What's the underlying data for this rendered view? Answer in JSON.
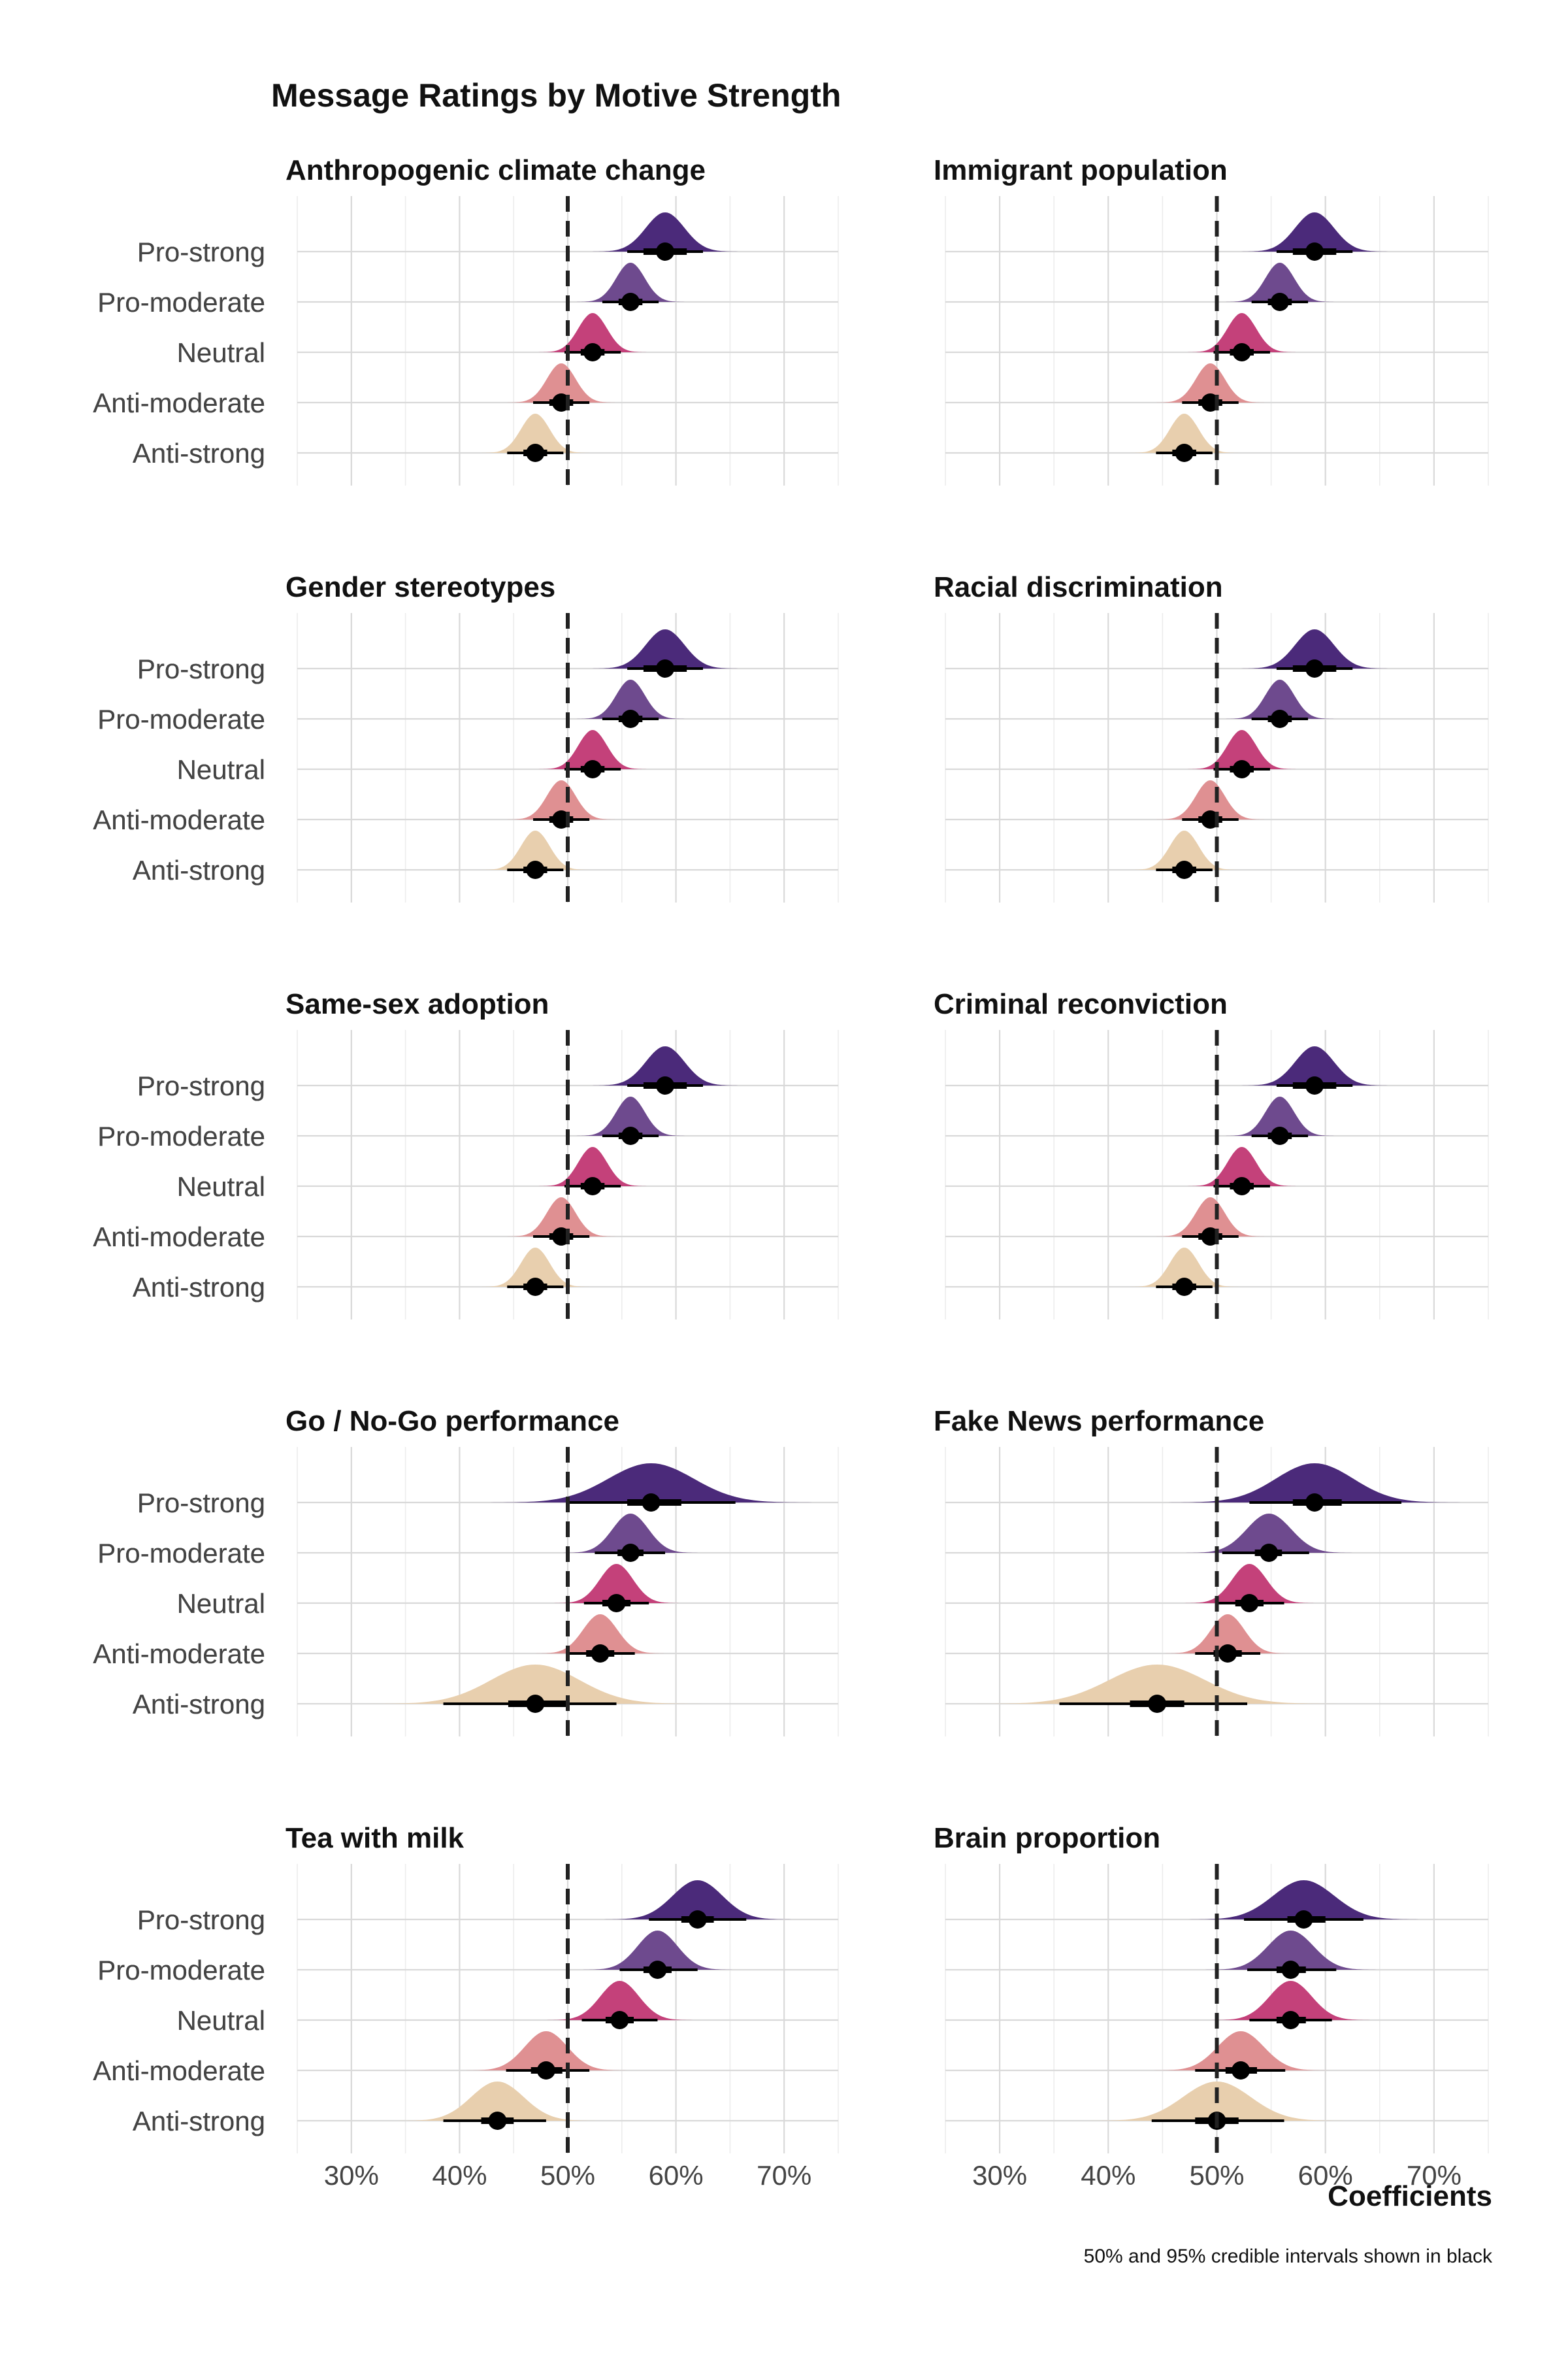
{
  "title": "Message Ratings by Motive Strength",
  "xlabel": "Coefficients",
  "caption": "50% and 95% credible intervals shown in black",
  "colors": {
    "Pro-strong": "#4b2a7a",
    "Pro-moderate": "#6e4a8e",
    "Neutral": "#c4417a",
    "Anti-moderate": "#df9092",
    "Anti-strong": "#e8cfae",
    "interval": "#000000",
    "reference": "#222222"
  },
  "chart_data": {
    "type": "scatter",
    "subtype": "half-eye (density + point + 50%/95% interval)",
    "x_axis": {
      "xlim": [
        0.25,
        0.75
      ],
      "ticks": [
        0.3,
        0.4,
        0.5,
        0.6,
        0.7
      ],
      "tick_labels": [
        "30%",
        "40%",
        "50%",
        "60%",
        "70%"
      ],
      "reference_line": 0.5
    },
    "categories": [
      "Pro-strong",
      "Pro-moderate",
      "Neutral",
      "Anti-moderate",
      "Anti-strong"
    ],
    "grid": true,
    "panels": [
      {
        "title": "Anthropogenic climate change",
        "points": [
          {
            "category": "Pro-strong",
            "mean": 0.59,
            "ci50": [
              0.57,
              0.61
            ],
            "ci95": [
              0.555,
              0.625
            ]
          },
          {
            "category": "Pro-moderate",
            "mean": 0.558,
            "ci50": [
              0.547,
              0.569
            ],
            "ci95": [
              0.532,
              0.584
            ]
          },
          {
            "category": "Neutral",
            "mean": 0.523,
            "ci50": [
              0.512,
              0.534
            ],
            "ci95": [
              0.497,
              0.549
            ]
          },
          {
            "category": "Anti-moderate",
            "mean": 0.494,
            "ci50": [
              0.483,
              0.505
            ],
            "ci95": [
              0.468,
              0.52
            ]
          },
          {
            "category": "Anti-strong",
            "mean": 0.47,
            "ci50": [
              0.459,
              0.481
            ],
            "ci95": [
              0.444,
              0.496
            ]
          }
        ]
      },
      {
        "title": "Immigrant population",
        "points": [
          {
            "category": "Pro-strong",
            "mean": 0.59,
            "ci50": [
              0.57,
              0.61
            ],
            "ci95": [
              0.555,
              0.625
            ]
          },
          {
            "category": "Pro-moderate",
            "mean": 0.558,
            "ci50": [
              0.547,
              0.569
            ],
            "ci95": [
              0.532,
              0.584
            ]
          },
          {
            "category": "Neutral",
            "mean": 0.523,
            "ci50": [
              0.512,
              0.534
            ],
            "ci95": [
              0.497,
              0.549
            ]
          },
          {
            "category": "Anti-moderate",
            "mean": 0.494,
            "ci50": [
              0.483,
              0.505
            ],
            "ci95": [
              0.468,
              0.52
            ]
          },
          {
            "category": "Anti-strong",
            "mean": 0.47,
            "ci50": [
              0.459,
              0.481
            ],
            "ci95": [
              0.444,
              0.496
            ]
          }
        ]
      },
      {
        "title": "Gender stereotypes",
        "points": [
          {
            "category": "Pro-strong",
            "mean": 0.59,
            "ci50": [
              0.57,
              0.61
            ],
            "ci95": [
              0.555,
              0.625
            ]
          },
          {
            "category": "Pro-moderate",
            "mean": 0.558,
            "ci50": [
              0.547,
              0.569
            ],
            "ci95": [
              0.532,
              0.584
            ]
          },
          {
            "category": "Neutral",
            "mean": 0.523,
            "ci50": [
              0.512,
              0.534
            ],
            "ci95": [
              0.497,
              0.549
            ]
          },
          {
            "category": "Anti-moderate",
            "mean": 0.494,
            "ci50": [
              0.483,
              0.505
            ],
            "ci95": [
              0.468,
              0.52
            ]
          },
          {
            "category": "Anti-strong",
            "mean": 0.47,
            "ci50": [
              0.459,
              0.481
            ],
            "ci95": [
              0.444,
              0.496
            ]
          }
        ]
      },
      {
        "title": "Racial discrimination",
        "points": [
          {
            "category": "Pro-strong",
            "mean": 0.59,
            "ci50": [
              0.57,
              0.61
            ],
            "ci95": [
              0.555,
              0.625
            ]
          },
          {
            "category": "Pro-moderate",
            "mean": 0.558,
            "ci50": [
              0.547,
              0.569
            ],
            "ci95": [
              0.532,
              0.584
            ]
          },
          {
            "category": "Neutral",
            "mean": 0.523,
            "ci50": [
              0.512,
              0.534
            ],
            "ci95": [
              0.497,
              0.549
            ]
          },
          {
            "category": "Anti-moderate",
            "mean": 0.494,
            "ci50": [
              0.483,
              0.505
            ],
            "ci95": [
              0.468,
              0.52
            ]
          },
          {
            "category": "Anti-strong",
            "mean": 0.47,
            "ci50": [
              0.459,
              0.481
            ],
            "ci95": [
              0.444,
              0.496
            ]
          }
        ]
      },
      {
        "title": "Same-sex adoption",
        "points": [
          {
            "category": "Pro-strong",
            "mean": 0.59,
            "ci50": [
              0.57,
              0.61
            ],
            "ci95": [
              0.555,
              0.625
            ]
          },
          {
            "category": "Pro-moderate",
            "mean": 0.558,
            "ci50": [
              0.547,
              0.569
            ],
            "ci95": [
              0.532,
              0.584
            ]
          },
          {
            "category": "Neutral",
            "mean": 0.523,
            "ci50": [
              0.512,
              0.534
            ],
            "ci95": [
              0.497,
              0.549
            ]
          },
          {
            "category": "Anti-moderate",
            "mean": 0.494,
            "ci50": [
              0.483,
              0.505
            ],
            "ci95": [
              0.468,
              0.52
            ]
          },
          {
            "category": "Anti-strong",
            "mean": 0.47,
            "ci50": [
              0.459,
              0.481
            ],
            "ci95": [
              0.444,
              0.496
            ]
          }
        ]
      },
      {
        "title": "Criminal reconviction",
        "points": [
          {
            "category": "Pro-strong",
            "mean": 0.59,
            "ci50": [
              0.57,
              0.61
            ],
            "ci95": [
              0.555,
              0.625
            ]
          },
          {
            "category": "Pro-moderate",
            "mean": 0.558,
            "ci50": [
              0.547,
              0.569
            ],
            "ci95": [
              0.532,
              0.584
            ]
          },
          {
            "category": "Neutral",
            "mean": 0.523,
            "ci50": [
              0.512,
              0.534
            ],
            "ci95": [
              0.497,
              0.549
            ]
          },
          {
            "category": "Anti-moderate",
            "mean": 0.494,
            "ci50": [
              0.483,
              0.505
            ],
            "ci95": [
              0.468,
              0.52
            ]
          },
          {
            "category": "Anti-strong",
            "mean": 0.47,
            "ci50": [
              0.459,
              0.481
            ],
            "ci95": [
              0.444,
              0.496
            ]
          }
        ]
      },
      {
        "title": "Go / No-Go performance",
        "points": [
          {
            "category": "Pro-strong",
            "mean": 0.577,
            "ci50": [
              0.555,
              0.605
            ],
            "ci95": [
              0.5,
              0.655
            ]
          },
          {
            "category": "Pro-moderate",
            "mean": 0.558,
            "ci50": [
              0.546,
              0.57
            ],
            "ci95": [
              0.525,
              0.59
            ]
          },
          {
            "category": "Neutral",
            "mean": 0.545,
            "ci50": [
              0.532,
              0.558
            ],
            "ci95": [
              0.515,
              0.575
            ]
          },
          {
            "category": "Anti-moderate",
            "mean": 0.53,
            "ci50": [
              0.517,
              0.543
            ],
            "ci95": [
              0.5,
              0.562
            ]
          },
          {
            "category": "Anti-strong",
            "mean": 0.47,
            "ci50": [
              0.445,
              0.5
            ],
            "ci95": [
              0.385,
              0.545
            ]
          }
        ]
      },
      {
        "title": "Fake News performance",
        "points": [
          {
            "category": "Pro-strong",
            "mean": 0.59,
            "ci50": [
              0.57,
              0.615
            ],
            "ci95": [
              0.53,
              0.67
            ]
          },
          {
            "category": "Pro-moderate",
            "mean": 0.548,
            "ci50": [
              0.535,
              0.56
            ],
            "ci95": [
              0.505,
              0.585
            ]
          },
          {
            "category": "Neutral",
            "mean": 0.53,
            "ci50": [
              0.517,
              0.543
            ],
            "ci95": [
              0.5,
              0.562
            ]
          },
          {
            "category": "Anti-moderate",
            "mean": 0.51,
            "ci50": [
              0.497,
              0.523
            ],
            "ci95": [
              0.48,
              0.54
            ]
          },
          {
            "category": "Anti-strong",
            "mean": 0.445,
            "ci50": [
              0.42,
              0.47
            ],
            "ci95": [
              0.355,
              0.528
            ]
          }
        ]
      },
      {
        "title": "Tea with milk",
        "points": [
          {
            "category": "Pro-strong",
            "mean": 0.62,
            "ci50": [
              0.605,
              0.635
            ],
            "ci95": [
              0.575,
              0.665
            ]
          },
          {
            "category": "Pro-moderate",
            "mean": 0.583,
            "ci50": [
              0.57,
              0.596
            ],
            "ci95": [
              0.548,
              0.62
            ]
          },
          {
            "category": "Neutral",
            "mean": 0.548,
            "ci50": [
              0.535,
              0.561
            ],
            "ci95": [
              0.513,
              0.583
            ]
          },
          {
            "category": "Anti-moderate",
            "mean": 0.48,
            "ci50": [
              0.466,
              0.495
            ],
            "ci95": [
              0.443,
              0.52
            ]
          },
          {
            "category": "Anti-strong",
            "mean": 0.435,
            "ci50": [
              0.42,
              0.45
            ],
            "ci95": [
              0.385,
              0.48
            ]
          }
        ]
      },
      {
        "title": "Brain proportion",
        "points": [
          {
            "category": "Pro-strong",
            "mean": 0.58,
            "ci50": [
              0.565,
              0.6
            ],
            "ci95": [
              0.525,
              0.635
            ]
          },
          {
            "category": "Pro-moderate",
            "mean": 0.568,
            "ci50": [
              0.555,
              0.582
            ],
            "ci95": [
              0.528,
              0.61
            ]
          },
          {
            "category": "Neutral",
            "mean": 0.568,
            "ci50": [
              0.555,
              0.582
            ],
            "ci95": [
              0.53,
              0.606
            ]
          },
          {
            "category": "Anti-moderate",
            "mean": 0.522,
            "ci50": [
              0.508,
              0.537
            ],
            "ci95": [
              0.48,
              0.563
            ]
          },
          {
            "category": "Anti-strong",
            "mean": 0.5,
            "ci50": [
              0.48,
              0.52
            ],
            "ci95": [
              0.44,
              0.562
            ]
          }
        ]
      }
    ]
  }
}
